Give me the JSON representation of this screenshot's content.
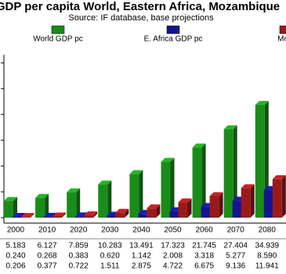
{
  "chart_data": {
    "type": "bar3d",
    "title": "GDP per capita World, Eastern Africa, Mozambique",
    "subtitle": "Source: IF database, base projections",
    "categories": [
      "2000",
      "2010",
      "2020",
      "2030",
      "2040",
      "2050",
      "2060",
      "2070",
      "2080"
    ],
    "series": [
      {
        "name": "World GDP pc",
        "color": "#1a8c1a",
        "values": [
          5.183,
          6.127,
          7.859,
          10.283,
          13.491,
          17.323,
          21.745,
          27.404,
          34.939
        ],
        "value_labels": [
          "5.183",
          "6.127",
          "7.859",
          "10.283",
          "13.491",
          "17.323",
          "21.745",
          "27.404",
          "34.939"
        ]
      },
      {
        "name": "E. Africa GDP pc",
        "color": "#14148c",
        "values": [
          0.24,
          0.268,
          0.383,
          0.62,
          1.142,
          2.008,
          3.318,
          5.277,
          8.59
        ],
        "value_labels": [
          "0.240",
          "0.268",
          "0.383",
          "0.620",
          "1.142",
          "2.008",
          "3.318",
          "5.277",
          "8.590"
        ]
      },
      {
        "name": "Moz.",
        "color": "#9a1a1a",
        "values": [
          0.206,
          0.377,
          0.722,
          1.511,
          2.875,
          4.722,
          6.675,
          9.136,
          11.941
        ],
        "value_labels": [
          "0.206",
          "0.377",
          "0.722",
          "1.511",
          "2.875",
          "4.722",
          "6.675",
          "9.136",
          "11.941"
        ]
      }
    ],
    "ylim": [
      0,
      50
    ],
    "yticks": [
      0,
      8,
      16,
      24,
      32,
      40,
      48
    ]
  }
}
